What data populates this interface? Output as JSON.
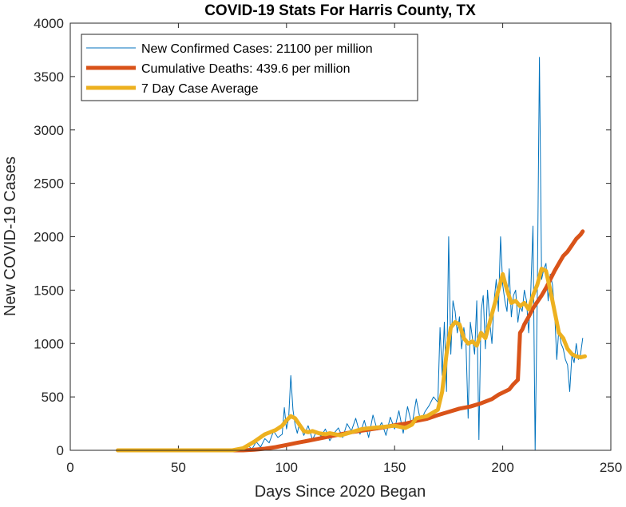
{
  "chart_data": {
    "type": "line",
    "title": "COVID-19 Stats For Harris County, TX",
    "xlabel": "Days Since 2020 Began",
    "ylabel": "New COVID-19 Cases",
    "xlim": [
      0,
      250
    ],
    "ylim": [
      0,
      4000
    ],
    "xticks": [
      0,
      50,
      100,
      150,
      200,
      250
    ],
    "yticks": [
      0,
      500,
      1000,
      1500,
      2000,
      2500,
      3000,
      3500,
      4000
    ],
    "grid": false,
    "legend_position": "top-left",
    "series": [
      {
        "name": "New Confirmed Cases: 21100 per million",
        "color": "#0072bd",
        "style": "thin",
        "x": [
          22,
          40,
          60,
          75,
          80,
          82,
          84,
          86,
          88,
          90,
          92,
          94,
          96,
          98,
          99,
          100,
          101,
          102,
          103,
          104,
          105,
          106,
          108,
          110,
          112,
          114,
          116,
          118,
          120,
          122,
          124,
          126,
          128,
          130,
          132,
          134,
          136,
          138,
          140,
          142,
          144,
          146,
          148,
          150,
          152,
          154,
          156,
          158,
          160,
          162,
          164,
          166,
          168,
          170,
          171,
          172,
          173,
          174,
          175,
          176,
          177,
          178,
          179,
          180,
          181,
          182,
          183,
          184,
          185,
          186,
          187,
          188,
          189,
          190,
          191,
          192,
          193,
          194,
          195,
          196,
          197,
          198,
          199,
          200,
          201,
          202,
          203,
          204,
          205,
          206,
          207,
          208,
          209,
          210,
          211,
          212,
          213,
          214,
          215,
          216,
          217,
          218,
          219,
          220,
          221,
          222,
          223,
          224,
          225,
          226,
          227,
          228,
          229,
          230,
          231,
          232,
          233,
          234,
          235,
          236,
          237
        ],
        "y": [
          0,
          0,
          0,
          0,
          20,
          50,
          10,
          80,
          30,
          110,
          70,
          180,
          120,
          150,
          400,
          200,
          300,
          700,
          380,
          240,
          160,
          250,
          140,
          230,
          100,
          180,
          130,
          200,
          90,
          160,
          210,
          120,
          250,
          180,
          300,
          150,
          280,
          120,
          330,
          190,
          260,
          140,
          310,
          200,
          370,
          160,
          410,
          230,
          480,
          270,
          360,
          420,
          500,
          450,
          1150,
          700,
          1200,
          550,
          2000,
          900,
          1400,
          1300,
          1100,
          1250,
          950,
          1150,
          1000,
          300,
          1200,
          1050,
          900,
          1400,
          100,
          1300,
          1450,
          950,
          1500,
          1200,
          1000,
          1400,
          1600,
          1300,
          2000,
          1550,
          1400,
          1300,
          1700,
          1250,
          1450,
          1500,
          1200,
          1350,
          1300,
          1500,
          1400,
          1100,
          1500,
          2100,
          0,
          1450,
          3680,
          1600,
          1700,
          1750,
          1400,
          1650,
          1550,
          1300,
          850,
          1150,
          1000,
          950,
          850,
          800,
          550,
          900,
          820,
          1000,
          850,
          900,
          1050
        ]
      },
      {
        "name": "Cumulative Deaths: 439.6 per million",
        "color": "#d95319",
        "style": "thick",
        "x": [
          22,
          50,
          70,
          80,
          85,
          90,
          95,
          100,
          105,
          110,
          115,
          120,
          125,
          130,
          135,
          140,
          145,
          150,
          155,
          160,
          165,
          170,
          175,
          180,
          185,
          190,
          195,
          198,
          200,
          203,
          205,
          207,
          208,
          209,
          210,
          212,
          214,
          216,
          218,
          220,
          222,
          224,
          226,
          228,
          230,
          232,
          234,
          236,
          237
        ],
        "y": [
          0,
          0,
          0,
          0,
          5,
          15,
          30,
          50,
          70,
          90,
          110,
          130,
          150,
          170,
          185,
          200,
          215,
          235,
          250,
          275,
          295,
          330,
          360,
          390,
          410,
          440,
          480,
          520,
          540,
          570,
          620,
          660,
          1100,
          1130,
          1180,
          1250,
          1330,
          1390,
          1450,
          1520,
          1600,
          1680,
          1750,
          1820,
          1860,
          1920,
          1980,
          2020,
          2050
        ]
      },
      {
        "name": "7 Day Case Average",
        "color": "#edb120",
        "style": "thick",
        "x": [
          22,
          50,
          75,
          80,
          85,
          90,
          95,
          98,
          100,
          102,
          104,
          106,
          108,
          110,
          112,
          115,
          118,
          120,
          125,
          130,
          135,
          140,
          145,
          150,
          155,
          158,
          160,
          165,
          170,
          172,
          174,
          176,
          178,
          180,
          182,
          184,
          186,
          188,
          190,
          192,
          194,
          196,
          198,
          200,
          202,
          204,
          206,
          208,
          210,
          212,
          214,
          216,
          218,
          220,
          222,
          224,
          226,
          228,
          230,
          232,
          234,
          236,
          238
        ],
        "y": [
          0,
          0,
          0,
          20,
          80,
          150,
          190,
          230,
          280,
          320,
          300,
          240,
          180,
          170,
          180,
          160,
          150,
          160,
          140,
          170,
          200,
          210,
          220,
          230,
          210,
          240,
          300,
          320,
          380,
          550,
          900,
          1150,
          1200,
          1180,
          1050,
          1000,
          1020,
          980,
          1100,
          1050,
          1200,
          1350,
          1500,
          1650,
          1500,
          1380,
          1400,
          1350,
          1380,
          1320,
          1450,
          1550,
          1700,
          1680,
          1500,
          1300,
          1100,
          1050,
          950,
          900,
          880,
          870,
          880
        ]
      }
    ]
  }
}
